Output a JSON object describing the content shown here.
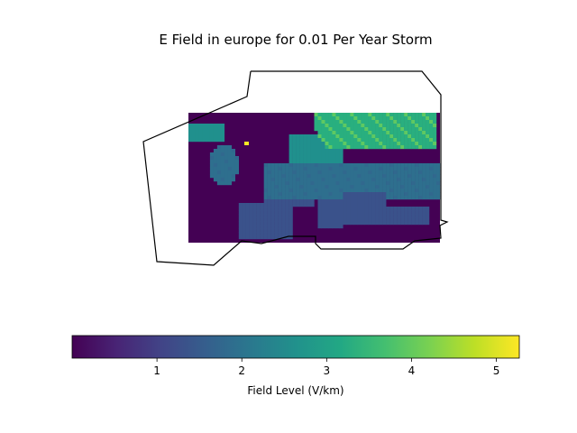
{
  "chart_data": {
    "type": "heatmap",
    "title": "E Field in europe for 0.01 Per Year Storm",
    "colormap": "viridis",
    "colorbar": {
      "label": "Field Level (V/km)",
      "range": [
        0.0,
        5.27
      ],
      "ticks": [
        1,
        2,
        3,
        4,
        5
      ],
      "tick_labels": [
        "1",
        "2",
        "3",
        "4",
        "5"
      ],
      "orientation": "horizontal",
      "placement": "bottom"
    },
    "heatmap": {
      "longitude_range": [
        -11,
        30
      ],
      "latitude_range": [
        34,
        71
      ],
      "colors": {
        "ocean": "#440154",
        "land_low": "#3a528b",
        "land_mid": "#2e6f8e",
        "land_high": "#20908d",
        "scandinavia": "#29af7f",
        "hotspot": "#fde725"
      },
      "regions_note_values": {
        "sea_value": 0.1,
        "southern_europe_value": 0.9,
        "central_europe_value": 1.5,
        "northern_europe_value": 2.8,
        "peak_value": 5.27
      }
    },
    "boundary_outline": true
  }
}
